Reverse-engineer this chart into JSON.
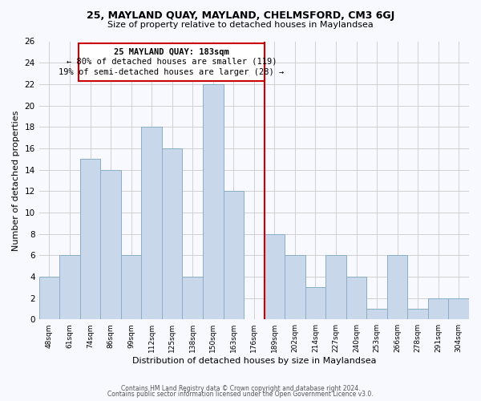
{
  "title": "25, MAYLAND QUAY, MAYLAND, CHELMSFORD, CM3 6GJ",
  "subtitle": "Size of property relative to detached houses in Maylandsea",
  "xlabel": "Distribution of detached houses by size in Maylandsea",
  "ylabel": "Number of detached properties",
  "bar_labels": [
    "48sqm",
    "61sqm",
    "74sqm",
    "86sqm",
    "99sqm",
    "112sqm",
    "125sqm",
    "138sqm",
    "150sqm",
    "163sqm",
    "176sqm",
    "189sqm",
    "202sqm",
    "214sqm",
    "227sqm",
    "240sqm",
    "253sqm",
    "266sqm",
    "278sqm",
    "291sqm",
    "304sqm"
  ],
  "bar_values": [
    4,
    6,
    15,
    14,
    6,
    18,
    16,
    4,
    22,
    12,
    0,
    8,
    6,
    3,
    6,
    4,
    1,
    6,
    1,
    2,
    2
  ],
  "bar_color": "#c8d8ea",
  "bar_edge_color": "#8aaec8",
  "marker_color": "#cc0000",
  "ylim_max": 26,
  "yticks": [
    0,
    2,
    4,
    6,
    8,
    10,
    12,
    14,
    16,
    18,
    20,
    22,
    24,
    26
  ],
  "annotation_title": "25 MAYLAND QUAY: 183sqm",
  "annotation_line1": "← 80% of detached houses are smaller (119)",
  "annotation_line2": "19% of semi-detached houses are larger (28) →",
  "footer1": "Contains HM Land Registry data © Crown copyright and database right 2024.",
  "footer2": "Contains public sector information licensed under the Open Government Licence v3.0.",
  "bg_color": "#f8f8ff",
  "grid_color": "#d0d0d0"
}
